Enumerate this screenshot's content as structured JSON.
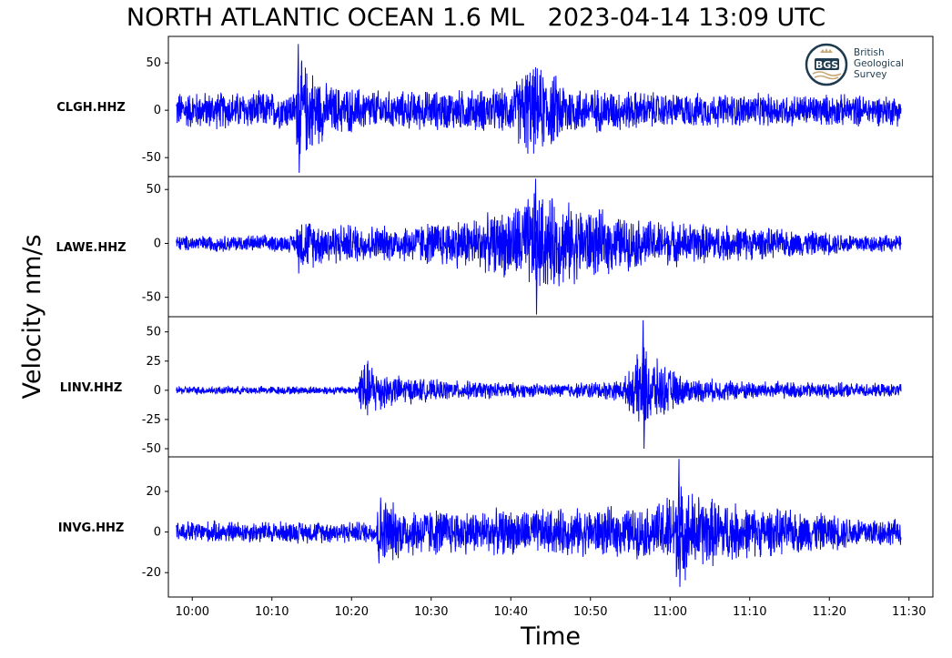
{
  "figure": {
    "title_region": "NORTH ATLANTIC OCEAN 1.6 ML",
    "title_time": "2023-04-14 13:09 UTC",
    "logo": {
      "abbrev": "BGS",
      "line1": "British",
      "line2": "Geological",
      "line3": "Survey"
    }
  },
  "chart_data": {
    "type": "line",
    "title": "NORTH ATLANTIC OCEAN 1.6 ML   2023-04-14 13:09 UTC",
    "xlabel": "Time",
    "ylabel": "Velocity nm/s",
    "x_ticks": [
      "10:00",
      "10:10",
      "10:20",
      "10:30",
      "10:40",
      "10:50",
      "11:00",
      "11:10",
      "11:20",
      "11:30"
    ],
    "x_range_minutes": [
      -3,
      93
    ],
    "data_span_minutes": [
      -2,
      89
    ],
    "legend": "none",
    "grid": false,
    "line_color": "#0000ff",
    "series": [
      {
        "name": "CLGH.HHZ",
        "ylim": [
          -70,
          78
        ],
        "yticks": [
          50,
          0,
          -50
        ],
        "ytick_labels": [
          "50",
          "0",
          "-50"
        ],
        "envelope": [
          [
            -2,
            22
          ],
          [
            13,
            22
          ],
          [
            13.2,
            60
          ],
          [
            15,
            50
          ],
          [
            17,
            30
          ],
          [
            25,
            22
          ],
          [
            40,
            26
          ],
          [
            42,
            55
          ],
          [
            45,
            45
          ],
          [
            48,
            28
          ],
          [
            60,
            20
          ],
          [
            89,
            18
          ]
        ],
        "peak_max": 70,
        "peak_min": -66
      },
      {
        "name": "LAWE.HHZ",
        "ylim": [
          -68,
          62
        ],
        "yticks": [
          50,
          0,
          -50
        ],
        "ytick_labels": [
          "50",
          "0",
          "-50"
        ],
        "envelope": [
          [
            -2,
            8
          ],
          [
            13,
            9
          ],
          [
            13.2,
            30
          ],
          [
            16,
            22
          ],
          [
            25,
            18
          ],
          [
            38,
            30
          ],
          [
            43,
            52
          ],
          [
            48,
            40
          ],
          [
            55,
            26
          ],
          [
            65,
            20
          ],
          [
            75,
            14
          ],
          [
            89,
            8
          ]
        ],
        "peak_max": 60,
        "peak_min": -66
      },
      {
        "name": "LINV.HHZ",
        "ylim": [
          -57,
          63
        ],
        "yticks": [
          50,
          25,
          0,
          -25,
          -50
        ],
        "ytick_labels": [
          "50",
          "25",
          "0",
          "-25",
          "-50"
        ],
        "envelope": [
          [
            -2,
            4
          ],
          [
            20.8,
            4
          ],
          [
            21,
            33
          ],
          [
            22,
            28
          ],
          [
            25,
            15
          ],
          [
            30,
            10
          ],
          [
            45,
            6
          ],
          [
            54,
            10
          ],
          [
            55.5,
            25
          ],
          [
            56.5,
            45
          ],
          [
            58,
            30
          ],
          [
            62,
            12
          ],
          [
            70,
            9
          ],
          [
            89,
            6
          ]
        ],
        "peak_max": 60,
        "peak_min": -50
      },
      {
        "name": "INVG.HHZ",
        "ylim": [
          -32,
          37
        ],
        "yticks": [
          20,
          0,
          -20
        ],
        "ytick_labels": [
          "20",
          "0",
          "-20"
        ],
        "envelope": [
          [
            -2,
            6
          ],
          [
            23,
            6
          ],
          [
            23.3,
            22
          ],
          [
            26,
            14
          ],
          [
            35,
            12
          ],
          [
            50,
            13
          ],
          [
            58,
            14
          ],
          [
            61,
            26
          ],
          [
            64,
            20
          ],
          [
            70,
            14
          ],
          [
            80,
            10
          ],
          [
            89,
            7
          ]
        ],
        "peak_max": 36,
        "peak_min": -27
      }
    ]
  }
}
